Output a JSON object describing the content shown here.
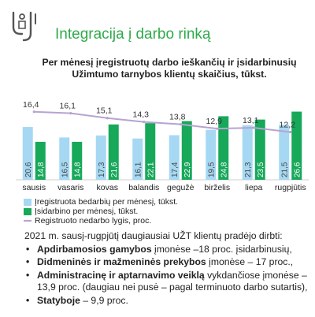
{
  "header": {
    "title": "Integracija į darbo rinką",
    "logo_icon": "person-tools-icon",
    "accent_color": "#2eaa4b"
  },
  "chart_data": {
    "type": "bar",
    "title": "Per mėnesį įregistruotų darbo ieškančių ir įsidarbinusių Užimtumo tarnybos klientų skaičius, tūkst.",
    "categories": [
      "sausis",
      "vasaris",
      "kovas",
      "balandis",
      "gegužė",
      "birželis",
      "liepa",
      "rugpjūtis"
    ],
    "series": [
      {
        "name": "Įregistruota bedarbių per mėnesį, tūkst.",
        "color": "#a6d8f3",
        "values": [
          20.6,
          16.5,
          17.3,
          16.1,
          17.4,
          19.5,
          21.3,
          21.5
        ],
        "labels": [
          "20,6",
          "16,5",
          "17,3",
          "16,1",
          "17,4",
          "19,5",
          "21,3",
          "21,5"
        ]
      },
      {
        "name": "Įsidarbino per mėnesį, tūkst.",
        "color": "#17a85a",
        "values": [
          14.8,
          14.8,
          21.6,
          22.1,
          22.9,
          24.8,
          23.5,
          26.6
        ],
        "labels": [
          "14,8",
          "14,8",
          "21,6",
          "22,1",
          "22,9",
          "24,8",
          "23,5",
          "26,6"
        ]
      }
    ],
    "line_series": {
      "name": "Registruoto nedarbo lygis, proc.",
      "color": "#b8a3d2",
      "values": [
        16.4,
        16.1,
        15.1,
        14.3,
        13.8,
        12.9,
        13.1,
        12.2
      ],
      "labels": [
        "16,4",
        "16,1",
        "15,1",
        "14,3",
        "13,8",
        "12,9",
        "13,1",
        "12,2"
      ]
    },
    "bar_ylim": [
      0,
      40
    ],
    "line_ylim": [
      0,
      18
    ],
    "grid": false,
    "legend_position": "bottom-left"
  },
  "summary": {
    "intro": "2021 m. sausį-rugpjūtį daugiausiai UŽT klientų pradėjo dirbti:",
    "items": [
      {
        "bold": "Apdirbamosios gamybos",
        "rest": " įmonėse –18 proc. įsidarbinusių,"
      },
      {
        "bold": "Didmeninės ir mažmeninės prekybos",
        "rest": " įmonėse – 17 proc.,"
      },
      {
        "bold": "Administracinę ir aptarnavimo veiklą",
        "rest": " vykdančiose įmonėse – 13,9 proc. (daugiau nei pusė – pagal terminuoto darbo sutartis),"
      },
      {
        "bold": "Statyboje",
        "rest": " – 9,9 proc."
      }
    ]
  }
}
